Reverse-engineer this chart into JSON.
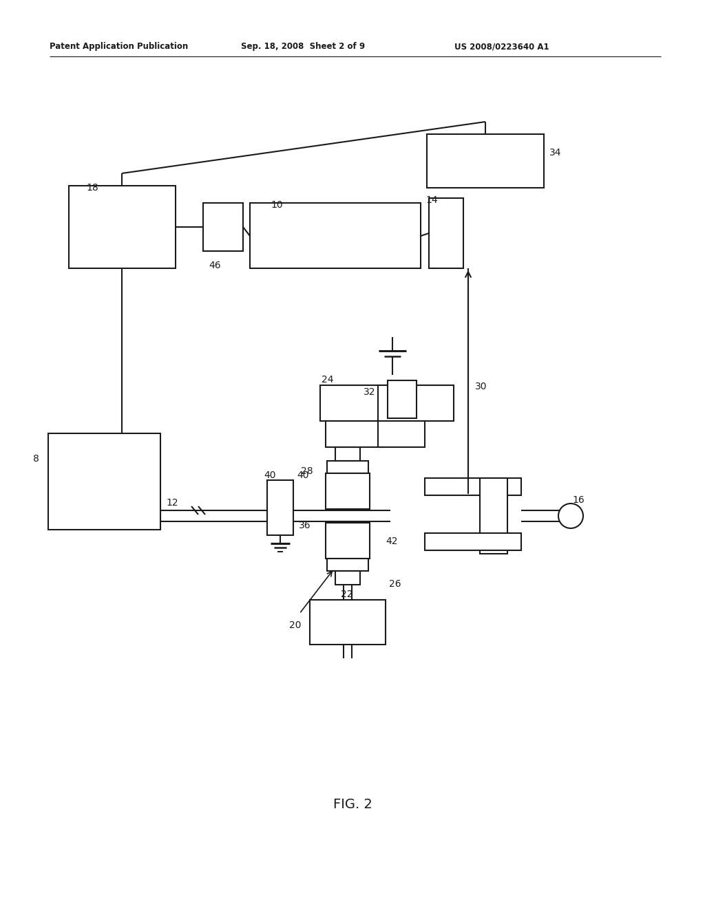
{
  "bg_color": "#ffffff",
  "lc": "#1a1a1a",
  "header_left": "Patent Application Publication",
  "header_mid": "Sep. 18, 2008  Sheet 2 of 9",
  "header_right": "US 2008/0223640 A1",
  "fig_label": "FIG. 2"
}
